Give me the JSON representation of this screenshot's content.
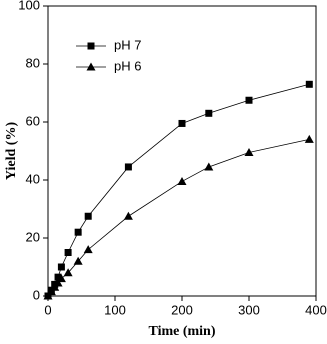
{
  "chart_data": {
    "type": "line",
    "xlabel": "Time (min)",
    "ylabel": "Yield (%)",
    "xlim": [
      0,
      400
    ],
    "xticks": [
      0,
      100,
      200,
      300,
      400
    ],
    "ylim": [
      0,
      100
    ],
    "yticks": [
      0,
      20,
      40,
      60,
      80,
      100
    ],
    "legend": "upper left",
    "series": [
      {
        "name": "pH 7",
        "color": "#000000",
        "marker": "square",
        "x": [
          0,
          5,
          10,
          15,
          20,
          30,
          45,
          60,
          120,
          200,
          240,
          300,
          390
        ],
        "values": [
          0,
          2,
          4,
          6.5,
          10,
          15,
          22,
          27.5,
          44.5,
          59.5,
          63,
          67.5,
          73
        ]
      },
      {
        "name": "pH 6",
        "color": "#000000",
        "marker": "triangle",
        "x": [
          0,
          5,
          10,
          15,
          20,
          30,
          45,
          60,
          120,
          200,
          240,
          300,
          390
        ],
        "values": [
          0,
          1.5,
          3,
          4.5,
          6,
          8,
          12,
          16,
          27.5,
          39.5,
          44.5,
          49.5,
          54
        ]
      }
    ]
  }
}
